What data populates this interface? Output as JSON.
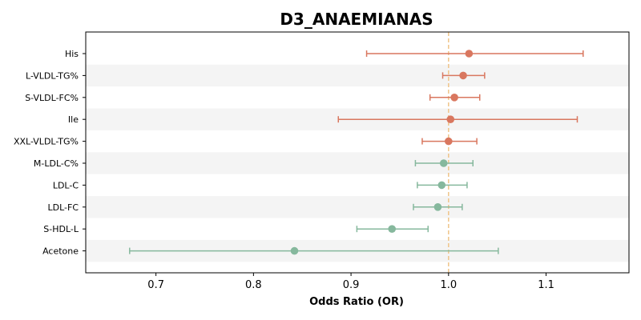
{
  "chart_data": {
    "type": "forest",
    "title": "D3_ANAEMIANAS",
    "xlabel": "Odds Ratio (OR)",
    "ylabel": "",
    "xlim": [
      0.628,
      1.185
    ],
    "xticks": [
      0.7,
      0.8,
      0.9,
      1.0,
      1.1
    ],
    "xtick_labels": [
      "0.7",
      "0.8",
      "0.9",
      "1.0",
      "1.1"
    ],
    "reference_line": 1.0,
    "colors": {
      "above_one": "#d9775f",
      "below_one": "#86b89d",
      "reference": "#f0c489",
      "band": "#f4f4f4"
    },
    "rows": [
      {
        "label": "His",
        "or": 1.021,
        "lower": 0.916,
        "upper": 1.138
      },
      {
        "label": "L-VLDL-TG%",
        "or": 1.015,
        "lower": 0.994,
        "upper": 1.037
      },
      {
        "label": "S-VLDL-FC%",
        "or": 1.006,
        "lower": 0.981,
        "upper": 1.032
      },
      {
        "label": "Ile",
        "or": 1.002,
        "lower": 0.887,
        "upper": 1.132
      },
      {
        "label": "XXL-VLDL-TG%",
        "or": 1.0,
        "lower": 0.973,
        "upper": 1.029
      },
      {
        "label": "M-LDL-C%",
        "or": 0.995,
        "lower": 0.966,
        "upper": 1.025
      },
      {
        "label": "LDL-C",
        "or": 0.993,
        "lower": 0.968,
        "upper": 1.019
      },
      {
        "label": "LDL-FC",
        "or": 0.989,
        "lower": 0.964,
        "upper": 1.014
      },
      {
        "label": "S-HDL-L",
        "or": 0.942,
        "lower": 0.906,
        "upper": 0.979
      },
      {
        "label": "Acetone",
        "or": 0.842,
        "lower": 0.673,
        "upper": 1.051
      }
    ]
  }
}
